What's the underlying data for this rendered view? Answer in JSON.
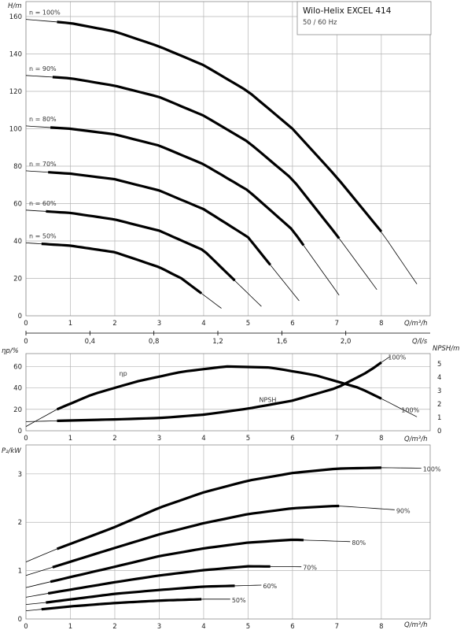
{
  "chart_data": [
    {
      "type": "line",
      "panel": "head",
      "title": "Wilo-Helix EXCEL 414",
      "subtitle": "50 / 60 Hz",
      "ylabel": "H/m",
      "xlabel": "Q/m³/h",
      "xlim": [
        0,
        9.1
      ],
      "ylim": [
        0,
        168
      ],
      "x_ticks": [
        "0",
        "1",
        "2",
        "3",
        "4",
        "5",
        "6",
        "7",
        "8"
      ],
      "y_ticks": [
        "0",
        "20",
        "40",
        "60",
        "80",
        "100",
        "120",
        "140",
        "160"
      ],
      "secondary_x_label": "Q/l/s",
      "secondary_x_ticks": [
        "0",
        "0,4",
        "0,8",
        "1,2",
        "1,6",
        "2,0"
      ],
      "secondary_x_values": [
        0,
        0.4,
        0.8,
        1.2,
        1.6,
        2.0
      ],
      "grid": true,
      "series": [
        {
          "name": "n = 100%",
          "x": [
            0,
            1,
            2,
            3,
            4,
            5,
            6,
            7,
            8,
            8.8
          ],
          "y": [
            158.5,
            156.5,
            152,
            144,
            134,
            120,
            100,
            74,
            45,
            17
          ],
          "ops_x": [
            0.7,
            8
          ]
        },
        {
          "name": "n = 90%",
          "x": [
            0,
            1,
            2,
            3,
            4,
            5,
            6,
            7,
            7.9
          ],
          "y": [
            128.5,
            127,
            123,
            117,
            107,
            93,
            73,
            43,
            14
          ],
          "ops_x": [
            0.6,
            7.05
          ]
        },
        {
          "name": "n = 80%",
          "x": [
            0,
            1,
            2,
            3,
            4,
            5,
            6,
            7.05
          ],
          "y": [
            101.5,
            100,
            97,
            91,
            81,
            67,
            46,
            11
          ],
          "ops_x": [
            0.55,
            6.25
          ]
        },
        {
          "name": "n = 70%",
          "x": [
            0,
            1,
            2,
            3,
            4,
            5,
            6.15
          ],
          "y": [
            77.5,
            76,
            73,
            67,
            57,
            42,
            8
          ],
          "ops_x": [
            0.5,
            5.5
          ]
        },
        {
          "name": "n = 60%",
          "x": [
            0,
            1,
            2,
            3,
            4,
            5.3
          ],
          "y": [
            56.5,
            55,
            51.5,
            45.5,
            35,
            5
          ],
          "ops_x": [
            0.45,
            4.7
          ]
        },
        {
          "name": "n = 50%",
          "x": [
            0,
            1,
            2,
            3,
            3.5,
            4.4
          ],
          "y": [
            39,
            37.5,
            34,
            26,
            20,
            4
          ],
          "ops_x": [
            0.35,
            3.95
          ]
        }
      ]
    },
    {
      "type": "line",
      "panel": "efficiency",
      "ylabel": "ηp/%",
      "ylabel_right": "NPSH/m",
      "xlabel": "Q/m³/h",
      "xlim": [
        0,
        9.1
      ],
      "ylim": [
        0,
        72
      ],
      "ylim_right": [
        0,
        5.76
      ],
      "x_ticks": [
        "0",
        "1",
        "2",
        "3",
        "4",
        "5",
        "6",
        "7",
        "8"
      ],
      "y_ticks": [
        "0",
        "20",
        "40",
        "60"
      ],
      "y_ticks_right": [
        "0",
        "1",
        "2",
        "3",
        "4",
        "5"
      ],
      "grid": true,
      "series": [
        {
          "name": "ηp",
          "axis": "left",
          "label_end": "100%",
          "x": [
            0,
            0.7,
            1.5,
            2.5,
            3.5,
            4.5,
            5.5,
            6.5,
            7.5,
            8,
            8.8
          ],
          "y": [
            4,
            20,
            34,
            46,
            55,
            60,
            59,
            52,
            40,
            30,
            13
          ],
          "ops_x": [
            0.7,
            8
          ]
        },
        {
          "name": "NPSH",
          "axis": "right",
          "label_end": "100%",
          "x": [
            0,
            0.7,
            2,
            3,
            4,
            5,
            6,
            7,
            7.7,
            8,
            8.2
          ],
          "y": [
            0.68,
            0.74,
            0.85,
            0.95,
            1.2,
            1.65,
            2.25,
            3.2,
            4.4,
            5.1,
            5.55
          ],
          "ops_x": [
            0.7,
            8
          ]
        }
      ]
    },
    {
      "type": "line",
      "panel": "power",
      "ylabel": "P₂/kW",
      "xlabel": "Q/m³/h",
      "xlim": [
        0,
        9.1
      ],
      "ylim": [
        0,
        3.6
      ],
      "x_ticks": [
        "0",
        "1",
        "2",
        "3",
        "4",
        "5",
        "6",
        "7",
        "8"
      ],
      "y_ticks": [
        "0",
        "1",
        "2",
        "3"
      ],
      "grid": true,
      "series": [
        {
          "name": "100%",
          "x": [
            0,
            0.7,
            2,
            3,
            4,
            5,
            6,
            7,
            8,
            8.9
          ],
          "y": [
            1.18,
            1.45,
            1.9,
            2.3,
            2.62,
            2.86,
            3.02,
            3.11,
            3.13,
            3.12
          ],
          "ops_x": [
            0.7,
            8
          ]
        },
        {
          "name": "90%",
          "x": [
            0,
            0.6,
            2,
            3,
            4,
            5,
            6,
            7,
            8.3
          ],
          "y": [
            0.9,
            1.07,
            1.47,
            1.75,
            1.98,
            2.17,
            2.29,
            2.34,
            2.26
          ],
          "ops_x": [
            0.6,
            7.05
          ]
        },
        {
          "name": "80%",
          "x": [
            0,
            0.55,
            2,
            3,
            4,
            5,
            6,
            7.3
          ],
          "y": [
            0.65,
            0.77,
            1.08,
            1.3,
            1.46,
            1.58,
            1.64,
            1.6
          ],
          "ops_x": [
            0.55,
            6.25
          ]
        },
        {
          "name": "70%",
          "x": [
            0,
            0.5,
            2,
            3,
            4,
            5,
            6.2
          ],
          "y": [
            0.45,
            0.53,
            0.76,
            0.9,
            1.01,
            1.09,
            1.08
          ],
          "ops_x": [
            0.5,
            5.5
          ]
        },
        {
          "name": "60%",
          "x": [
            0,
            0.45,
            2,
            3,
            4,
            5.3
          ],
          "y": [
            0.3,
            0.34,
            0.52,
            0.6,
            0.67,
            0.7
          ],
          "ops_x": [
            0.45,
            4.7
          ]
        },
        {
          "name": "50%",
          "x": [
            0,
            0.35,
            1,
            2,
            3,
            4,
            4.6
          ],
          "y": [
            0.17,
            0.2,
            0.26,
            0.33,
            0.38,
            0.41,
            0.41
          ],
          "ops_x": [
            0.35,
            3.95
          ]
        }
      ]
    }
  ]
}
